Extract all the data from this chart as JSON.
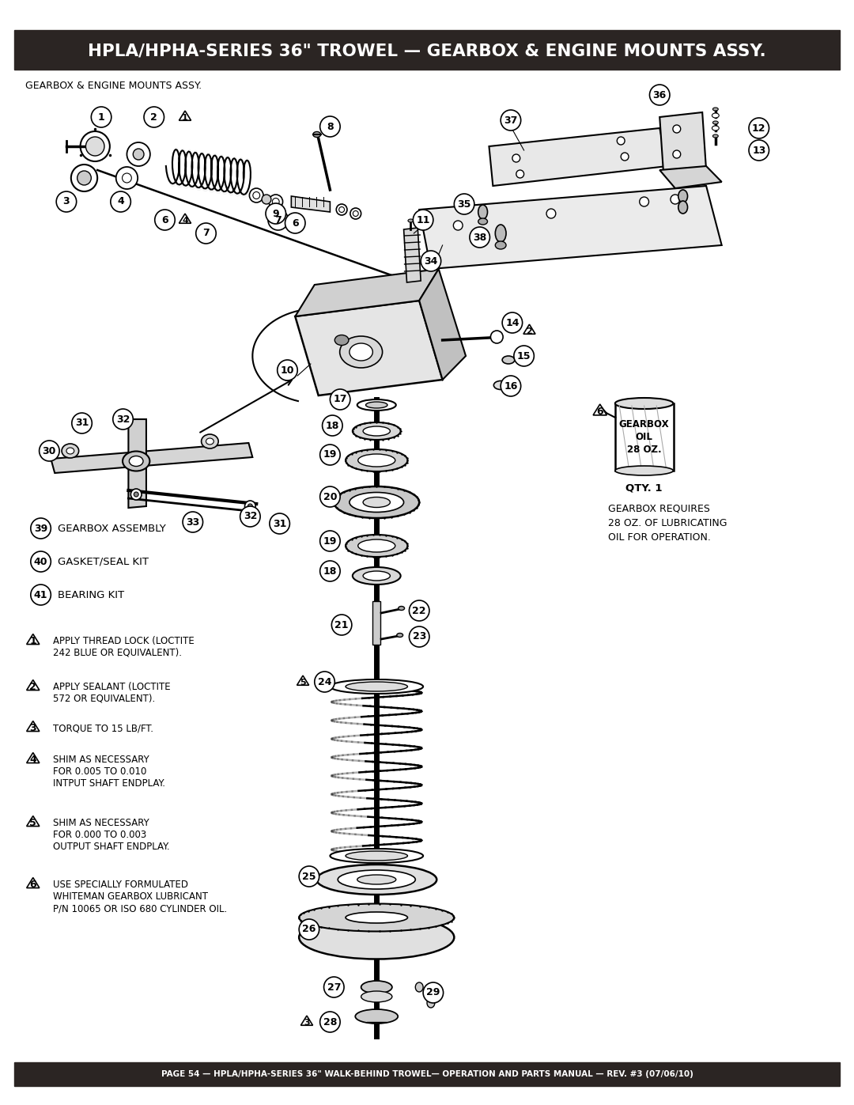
{
  "title": "HPLA/HPHA-SERIES 36\" TROWEL — GEARBOX & ENGINE MOUNTS ASSY.",
  "title_bg": "#2b2523",
  "title_color": "#ffffff",
  "subtitle": "GEARBOX & ENGINE MOUNTS ASSY.",
  "footer": "PAGE 54 — HPLA/HPHA-SERIES 36\" WALK-BEHIND TROWEL— OPERATION AND PARTS MANUAL — REV. #3 (07/06/10)",
  "footer_bg": "#2b2523",
  "footer_color": "#ffffff",
  "bg_color": "#ffffff",
  "notes": [
    {
      "num": "1",
      "text": "APPLY THREAD LOCK (LOCTITE\n242 BLUE OR EQUIVALENT)."
    },
    {
      "num": "2",
      "text": "APPLY SEALANT (LOCTITE\n572 OR EQUIVALENT)."
    },
    {
      "num": "3",
      "text": "TORQUE TO 15 LB/FT."
    },
    {
      "num": "4",
      "text": "SHIM AS NECESSARY\nFOR 0.005 TO 0.010\nINTPUT SHAFT ENDPLAY."
    },
    {
      "num": "5",
      "text": "SHIM AS NECESSARY\nFOR 0.000 TO 0.003\nOUTPUT SHAFT ENDPLAY."
    },
    {
      "num": "6",
      "text": "USE SPECIALLY FORMULATED\nWHITEMAN GEARBOX LUBRICANT\nP/N 10065 OR ISO 680 CYLINDER OIL."
    }
  ],
  "kit_items": [
    {
      "num": "39",
      "text": "GEARBOX ASSEMBLY"
    },
    {
      "num": "40",
      "text": "GASKET/SEAL KIT"
    },
    {
      "num": "41",
      "text": "BEARING KIT"
    }
  ],
  "oil_note": "GEARBOX REQUIRES\n28 OZ. OF LUBRICATING\nOIL FOR OPERATION.",
  "oil_qty": "QTY. 1",
  "oil_label": "GEARBOX\nOIL\n28 OZ."
}
